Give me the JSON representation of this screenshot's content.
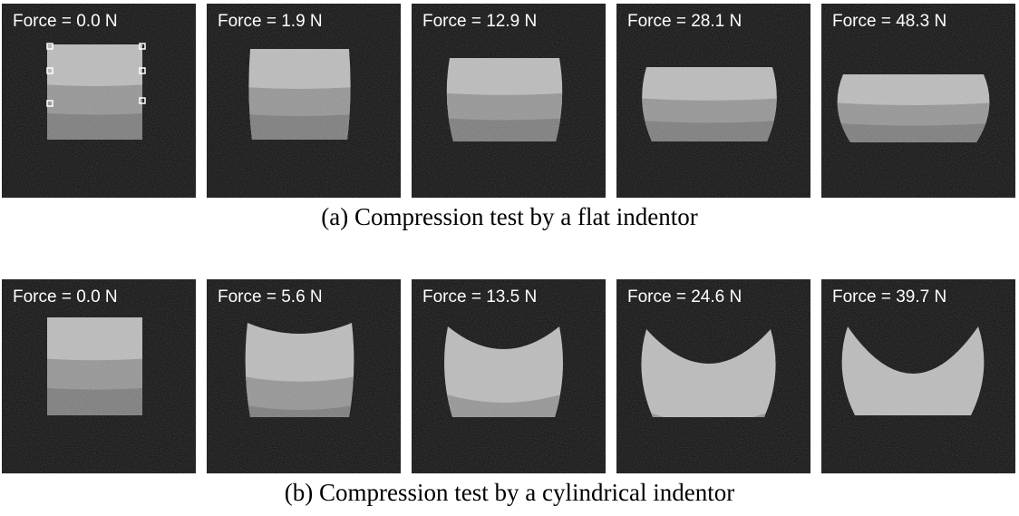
{
  "figure": {
    "rows": [
      {
        "caption": "(a) Compression test by a flat indentor",
        "panels": [
          "Force = 0.0 N",
          "Force = 1.9 N",
          "Force = 12.9 N",
          "Force = 28.1 N",
          "Force = 48.3 N"
        ]
      },
      {
        "caption": "(b) Compression test by a cylindrical indentor",
        "panels": [
          "Force = 0.0 N",
          "Force = 5.6 N",
          "Force = 13.5 N",
          "Force = 24.6 N",
          "Force = 39.7 N"
        ]
      }
    ]
  }
}
